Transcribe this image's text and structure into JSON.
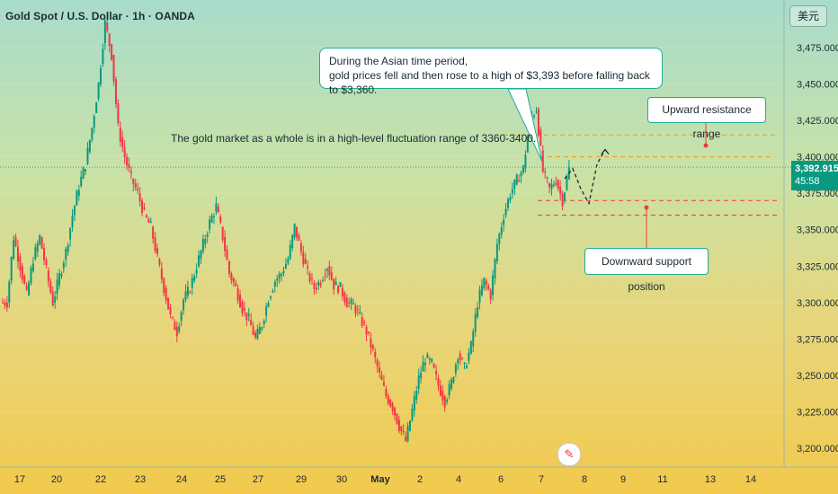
{
  "header": {
    "symbol_line": "Gold Spot / U.S. Dollar · 1h · OANDA",
    "currency_button": "美元"
  },
  "price_tag": {
    "price": "3,392.915",
    "countdown": "45:58",
    "color": "#089981"
  },
  "annotations": {
    "asian_note_line1": "During the Asian time period,",
    "asian_note_line2": "gold prices fell and then rose to a high of $3,393 before falling back to $3,360.",
    "range_note": "The gold market as a whole is in a high-level fluctuation range of 3360-3400.",
    "resistance_label": "Upward resistance range",
    "support_label": "Downward support position"
  },
  "colors": {
    "up": "#089981",
    "down": "#f23645",
    "level_orange": "#ff9800",
    "level_red": "#f23645"
  },
  "chart_data": {
    "type": "candlestick",
    "x_ticks": [
      "17",
      "20",
      "22",
      "23",
      "24",
      "25",
      "27",
      "29",
      "30",
      "May",
      "2",
      "4",
      "6",
      "7",
      "8",
      "9",
      "11",
      "13",
      "14"
    ],
    "y_ticks": [
      "3,200.000",
      "3,225.000",
      "3,250.000",
      "3,275.000",
      "3,300.000",
      "3,325.000",
      "3,350.000",
      "3,375.000",
      "3,400.000",
      "3,425.000",
      "3,450.000",
      "3,475.000"
    ],
    "ylim": [
      3195,
      3500
    ],
    "last_price": 3392.915,
    "levels": {
      "resistance": [
        3400,
        3415
      ],
      "support": [
        3360,
        3370
      ]
    },
    "close_path": [
      3300,
      3345,
      3325,
      3305,
      3330,
      3345,
      3322,
      3300,
      3318,
      3335,
      3360,
      3380,
      3395,
      3420,
      3450,
      3492,
      3470,
      3420,
      3400,
      3385,
      3375,
      3360,
      3352,
      3330,
      3310,
      3290,
      3280,
      3302,
      3310,
      3325,
      3340,
      3355,
      3366,
      3345,
      3320,
      3310,
      3296,
      3288,
      3275,
      3285,
      3303,
      3315,
      3320,
      3330,
      3352,
      3335,
      3320,
      3310,
      3315,
      3325,
      3312,
      3310,
      3300,
      3298,
      3290,
      3280,
      3266,
      3250,
      3236,
      3228,
      3215,
      3205,
      3226,
      3248,
      3262,
      3258,
      3243,
      3232,
      3245,
      3265,
      3255,
      3270,
      3300,
      3315,
      3305,
      3340,
      3360,
      3375,
      3384,
      3392,
      3425,
      3433,
      3390,
      3378,
      3384,
      3370,
      3392
    ],
    "projection": [
      3385,
      3392,
      3378,
      3368,
      3395,
      3405
    ],
    "series": []
  }
}
